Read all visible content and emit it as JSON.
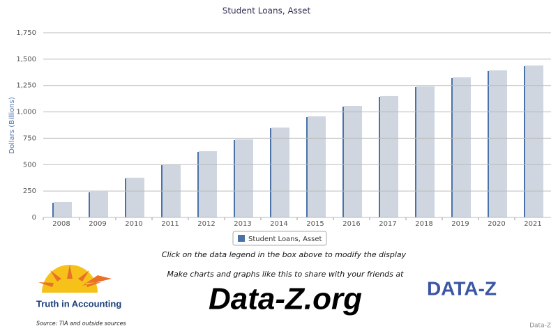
{
  "chart_data": {
    "type": "bar",
    "title": "Student Loans, Asset",
    "y_label": "Dollars (Billions)",
    "categories": [
      "2008",
      "2009",
      "2010",
      "2011",
      "2012",
      "2013",
      "2014",
      "2015",
      "2016",
      "2017",
      "2018",
      "2019",
      "2020",
      "2021"
    ],
    "series": [
      {
        "name": "Student Loans, Asset",
        "color": "#4a72a8",
        "values": [
          139,
          238,
          370,
          495,
          621,
          733,
          845,
          951,
          1050,
          1143,
          1235,
          1321,
          1387,
          1433
        ]
      }
    ],
    "ylim": [
      0,
      1750
    ],
    "yticks": [
      0,
      250,
      500,
      750,
      {
        "value": 1000,
        "label": "1,000"
      },
      {
        "value": 1250,
        "label": "1,250"
      },
      {
        "value": 1500,
        "label": "1,500"
      },
      {
        "value": 1750,
        "label": "1,750"
      }
    ],
    "grid": true
  },
  "page": {
    "hint": "Click on the data legend in the box above to modify the display",
    "promo": "Make charts and graphs like this to share with your friends at",
    "site": "Data-Z.org",
    "logo_left": "Truth in Accounting",
    "source": "Source: TIA and outside sources",
    "logo_right": "DATA-Z",
    "credit": "Data-Z"
  }
}
